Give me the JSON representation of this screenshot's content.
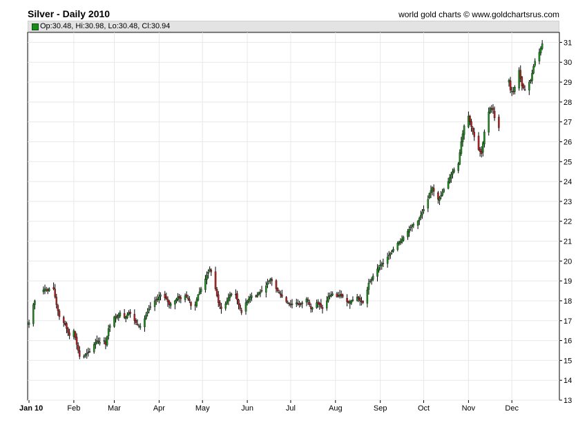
{
  "header": {
    "title": "Silver - Daily 2010",
    "credit": "world gold charts © www.goldchartsrus.com"
  },
  "info": {
    "text": "Op:30.48, Hi:30.98, Lo:30.48, Cl:30.94",
    "swatch_color": "#1a8a1a"
  },
  "chart_data": {
    "type": "candlestick",
    "title": "Silver - Daily 2010",
    "xlabel": "",
    "ylabel": "",
    "ylim": [
      13,
      31.5
    ],
    "y_ticks": [
      13,
      14,
      15,
      16,
      17,
      18,
      19,
      20,
      21,
      22,
      23,
      24,
      25,
      26,
      27,
      28,
      29,
      30,
      31
    ],
    "y_axis_position": "right",
    "grid": true,
    "colors": {
      "up": "#1a8a1a",
      "down": "#b22222",
      "wick": "#000000",
      "grid": "#e8e8e8"
    },
    "x_ticks": [
      {
        "label": "Jan 10",
        "x": 0,
        "bold": true
      },
      {
        "label": "Feb",
        "x": 31
      },
      {
        "label": "Mar",
        "x": 59
      },
      {
        "label": "Apr",
        "x": 90
      },
      {
        "label": "May",
        "x": 120
      },
      {
        "label": "Jun",
        "x": 151
      },
      {
        "label": "Jul",
        "x": 181
      },
      {
        "label": "Aug",
        "x": 212
      },
      {
        "label": "Sep",
        "x": 243
      },
      {
        "label": "Oct",
        "x": 273
      },
      {
        "label": "Nov",
        "x": 304
      },
      {
        "label": "Dec",
        "x": 334
      }
    ],
    "xlim": [
      0,
      364
    ],
    "close_path": [
      [
        0,
        16.9
      ],
      [
        2,
        17.6
      ],
      [
        4,
        18.0
      ],
      [
        7,
        18.3
      ],
      [
        9,
        18.5
      ],
      [
        11,
        18.6
      ],
      [
        13,
        18.5
      ],
      [
        15,
        18.7
      ],
      [
        17,
        18.6
      ],
      [
        19,
        17.8
      ],
      [
        21,
        17.2
      ],
      [
        23,
        17.0
      ],
      [
        25,
        16.8
      ],
      [
        27,
        16.4
      ],
      [
        29,
        16.1
      ],
      [
        31,
        16.5
      ],
      [
        33,
        15.8
      ],
      [
        35,
        15.2
      ],
      [
        37,
        15.1
      ],
      [
        39,
        15.3
      ],
      [
        41,
        15.4
      ],
      [
        43,
        15.5
      ],
      [
        45,
        15.8
      ],
      [
        47,
        16.0
      ],
      [
        49,
        15.9
      ],
      [
        51,
        16.2
      ],
      [
        53,
        15.8
      ],
      [
        55,
        16.6
      ],
      [
        57,
        16.9
      ],
      [
        59,
        17.2
      ],
      [
        61,
        17.2
      ],
      [
        63,
        17.4
      ],
      [
        65,
        17.1
      ],
      [
        67,
        17.2
      ],
      [
        69,
        17.4
      ],
      [
        71,
        17.3
      ],
      [
        73,
        17.0
      ],
      [
        75,
        16.8
      ],
      [
        77,
        16.7
      ],
      [
        79,
        16.9
      ],
      [
        81,
        17.3
      ],
      [
        83,
        17.6
      ],
      [
        85,
        17.8
      ],
      [
        87,
        18.0
      ],
      [
        89,
        18.1
      ],
      [
        91,
        18.3
      ],
      [
        93,
        18.2
      ],
      [
        95,
        18.1
      ],
      [
        97,
        17.8
      ],
      [
        99,
        17.9
      ],
      [
        101,
        18.0
      ],
      [
        103,
        18.2
      ],
      [
        105,
        18.1
      ],
      [
        107,
        18.3
      ],
      [
        109,
        18.2
      ],
      [
        111,
        18.0
      ],
      [
        113,
        17.5
      ],
      [
        115,
        17.8
      ],
      [
        117,
        18.3
      ],
      [
        119,
        18.6
      ],
      [
        121,
        18.9
      ],
      [
        123,
        19.3
      ],
      [
        125,
        19.6
      ],
      [
        127,
        19.3
      ],
      [
        129,
        18.6
      ],
      [
        131,
        17.9
      ],
      [
        133,
        17.6
      ],
      [
        135,
        17.7
      ],
      [
        137,
        18.0
      ],
      [
        139,
        18.3
      ],
      [
        141,
        18.4
      ],
      [
        143,
        18.3
      ],
      [
        145,
        17.8
      ],
      [
        147,
        17.4
      ],
      [
        149,
        17.8
      ],
      [
        151,
        18.0
      ],
      [
        153,
        18.2
      ],
      [
        155,
        18.3
      ],
      [
        157,
        18.2
      ],
      [
        159,
        18.4
      ],
      [
        161,
        18.5
      ],
      [
        163,
        18.6
      ],
      [
        165,
        18.9
      ],
      [
        167,
        19.1
      ],
      [
        169,
        18.9
      ],
      [
        171,
        18.6
      ],
      [
        173,
        18.4
      ],
      [
        175,
        18.2
      ],
      [
        177,
        18.0
      ],
      [
        179,
        17.9
      ],
      [
        181,
        17.8
      ],
      [
        183,
        17.9
      ],
      [
        185,
        17.9
      ],
      [
        187,
        17.8
      ],
      [
        189,
        17.9
      ],
      [
        191,
        18.2
      ],
      [
        193,
        18.0
      ],
      [
        195,
        17.6
      ],
      [
        197,
        17.7
      ],
      [
        199,
        17.9
      ],
      [
        201,
        17.8
      ],
      [
        203,
        17.6
      ],
      [
        205,
        17.8
      ],
      [
        207,
        18.2
      ],
      [
        209,
        18.3
      ],
      [
        211,
        18.4
      ],
      [
        213,
        18.2
      ],
      [
        215,
        18.3
      ],
      [
        217,
        18.2
      ],
      [
        219,
        18.0
      ],
      [
        221,
        17.9
      ],
      [
        223,
        18.0
      ],
      [
        225,
        18.1
      ],
      [
        227,
        18.2
      ],
      [
        229,
        18.0
      ],
      [
        231,
        17.9
      ],
      [
        233,
        18.2
      ],
      [
        235,
        18.9
      ],
      [
        237,
        19.1
      ],
      [
        239,
        19.4
      ],
      [
        241,
        19.6
      ],
      [
        243,
        19.8
      ],
      [
        245,
        19.9
      ],
      [
        247,
        20.1
      ],
      [
        249,
        20.3
      ],
      [
        251,
        20.5
      ],
      [
        253,
        20.7
      ],
      [
        255,
        20.9
      ],
      [
        257,
        21.0
      ],
      [
        259,
        21.2
      ],
      [
        261,
        21.4
      ],
      [
        263,
        21.6
      ],
      [
        265,
        21.8
      ],
      [
        267,
        21.9
      ],
      [
        269,
        22.0
      ],
      [
        271,
        22.3
      ],
      [
        273,
        22.6
      ],
      [
        275,
        22.8
      ],
      [
        277,
        23.4
      ],
      [
        279,
        23.7
      ],
      [
        281,
        23.3
      ],
      [
        283,
        23.1
      ],
      [
        285,
        23.3
      ],
      [
        287,
        23.6
      ],
      [
        289,
        23.8
      ],
      [
        291,
        24.2
      ],
      [
        293,
        24.5
      ],
      [
        295,
        24.7
      ],
      [
        297,
        24.9
      ],
      [
        299,
        26.0
      ],
      [
        301,
        26.8
      ],
      [
        303,
        27.6
      ],
      [
        305,
        27.0
      ],
      [
        307,
        26.5
      ],
      [
        309,
        26.0
      ],
      [
        311,
        25.6
      ],
      [
        313,
        25.4
      ],
      [
        315,
        26.5
      ],
      [
        317,
        27.3
      ],
      [
        319,
        27.7
      ],
      [
        321,
        27.6
      ],
      [
        323,
        26.8
      ],
      [
        325,
        26.7
      ],
      [
        329,
        29.2
      ],
      [
        331,
        29.6
      ],
      [
        333,
        28.6
      ],
      [
        335,
        28.5
      ],
      [
        337,
        29.0
      ],
      [
        339,
        29.6
      ],
      [
        341,
        28.8
      ],
      [
        343,
        28.6
      ],
      [
        345,
        28.9
      ],
      [
        347,
        29.1
      ],
      [
        349,
        29.8
      ],
      [
        351,
        30.3
      ],
      [
        353,
        30.5
      ],
      [
        355,
        30.94
      ]
    ]
  }
}
